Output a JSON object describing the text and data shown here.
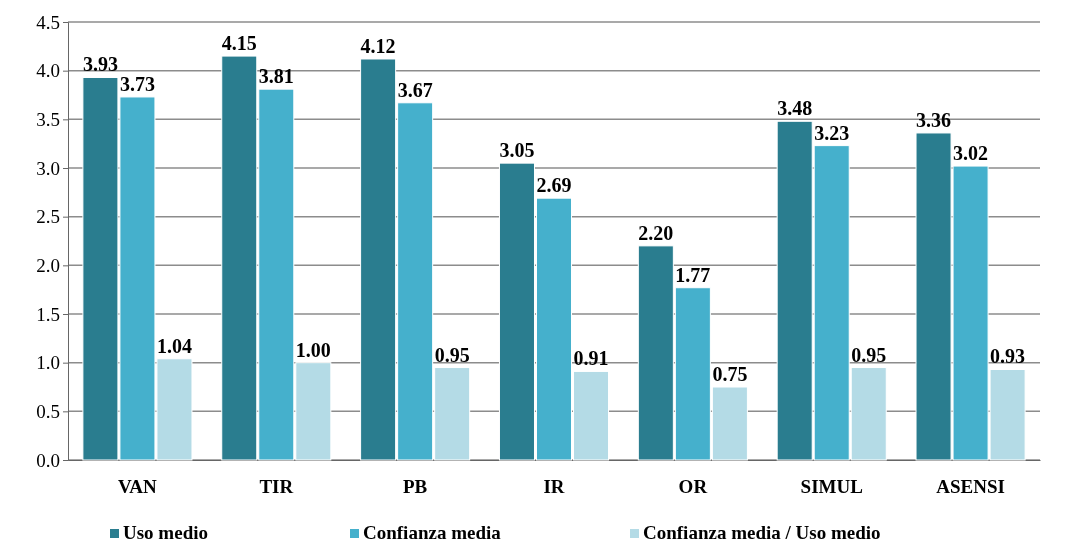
{
  "chart_data": {
    "type": "bar",
    "categories": [
      "VAN",
      "TIR",
      "PB",
      "IR",
      "OR",
      "SIMUL",
      "ASENSI"
    ],
    "series": [
      {
        "name": "Uso medio",
        "color": "#2a7d8f",
        "values": [
          3.93,
          4.15,
          4.12,
          3.05,
          2.2,
          3.48,
          3.36
        ]
      },
      {
        "name": "Confianza media",
        "color": "#45b0cc",
        "values": [
          3.73,
          3.81,
          3.67,
          2.69,
          1.77,
          3.23,
          3.02
        ]
      },
      {
        "name": "Confianza media / Uso medio",
        "color": "#b4dbe6",
        "values": [
          1.04,
          1.0,
          0.95,
          0.91,
          0.75,
          0.95,
          0.93
        ]
      }
    ],
    "value_labels": [
      [
        "3.93",
        "4.15",
        "4.12",
        "3.05",
        "2.20",
        "3.48",
        "3.36"
      ],
      [
        "3.73",
        "3.81",
        "3.67",
        "2.69",
        "1.77",
        "3.23",
        "3.02"
      ],
      [
        "1.04",
        "1.00",
        "0.95",
        "0.91",
        "0.75",
        "0.95",
        "0.93"
      ]
    ],
    "ylim": [
      0,
      4.5
    ],
    "yticks": [
      {
        "value": 0,
        "label": "0.0"
      },
      {
        "value": 0.5,
        "label": "0.5"
      },
      {
        "value": 1,
        "label": "1.0"
      },
      {
        "value": 1.5,
        "label": "1.5"
      },
      {
        "value": 2,
        "label": "2.0"
      },
      {
        "value": 2.5,
        "label": "2.5"
      },
      {
        "value": 3,
        "label": "3.0"
      },
      {
        "value": 3.5,
        "label": "3.5"
      },
      {
        "value": 4,
        "label": "4.0"
      },
      {
        "value": 4.5,
        "label": "4.5"
      }
    ],
    "grid": "y",
    "legend": "bottom"
  }
}
